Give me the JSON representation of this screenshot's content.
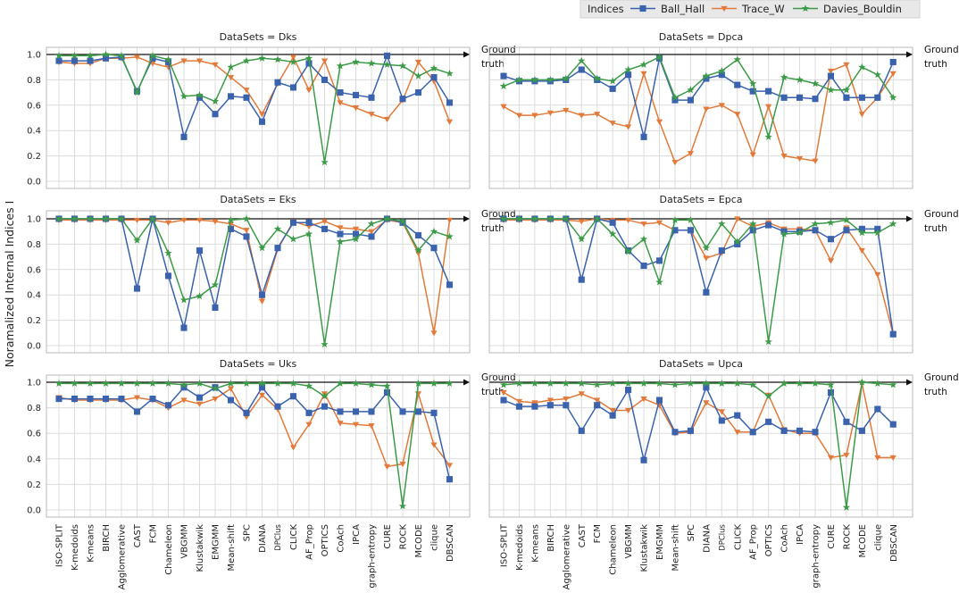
{
  "chart_data": {
    "type": "line",
    "ylabel": "Noramalized Internal Indices I",
    "ylim": [
      0,
      1
    ],
    "yticks": [
      "0.0",
      "0.2",
      "0.4",
      "0.6",
      "0.8",
      "1.0"
    ],
    "categories": [
      "ISO-SPLIT",
      "K-medoids",
      "K-means",
      "BIRCH",
      "Agglomerative",
      "CAST",
      "FCM",
      "Chameleon",
      "VBGMM",
      "Klustakwik",
      "EMGMM",
      "Mean-shift",
      "SPC",
      "DIANA",
      "DPClus",
      "CLICK",
      "AF_Prop",
      "OPTICS",
      "CoAch",
      "IPCA",
      "graph-entropy",
      "CURE",
      "ROCK",
      "MCODE",
      "clique",
      "DBSCAN"
    ],
    "legend": {
      "title": "Indices",
      "entries": [
        "Ball_Hall",
        "Trace_W",
        "Davies_Bouldin"
      ],
      "colors": [
        "#3a62ad",
        "#e17a3a",
        "#3c9a48"
      ],
      "markers": [
        "square",
        "triangle-down",
        "star"
      ]
    },
    "annotation": [
      "Ground",
      "truth"
    ],
    "panels": [
      {
        "title": "DataSets = Dks",
        "series": [
          {
            "name": "Ball_Hall",
            "values": [
              0.95,
              0.95,
              0.95,
              0.97,
              0.98,
              0.71,
              0.97,
              0.94,
              0.35,
              0.66,
              0.53,
              0.67,
              0.66,
              0.47,
              0.78,
              0.74,
              0.93,
              0.8,
              0.7,
              0.68,
              0.66,
              0.99,
              0.65,
              0.7,
              0.82,
              0.62
            ]
          },
          {
            "name": "Trace_W",
            "values": [
              0.94,
              0.93,
              0.93,
              0.97,
              0.97,
              0.98,
              0.93,
              0.9,
              0.95,
              0.95,
              0.92,
              0.82,
              0.72,
              0.53,
              0.77,
              0.98,
              0.72,
              0.95,
              0.62,
              0.58,
              0.53,
              0.49,
              0.64,
              0.94,
              0.79,
              0.47
            ]
          },
          {
            "name": "Davies_Bouldin",
            "values": [
              0.99,
              0.99,
              0.99,
              1.0,
              0.99,
              0.7,
              0.99,
              0.96,
              0.67,
              0.68,
              0.63,
              0.9,
              0.95,
              0.97,
              0.96,
              0.94,
              0.97,
              0.15,
              0.91,
              0.94,
              0.93,
              0.92,
              0.91,
              0.83,
              0.89,
              0.85
            ]
          }
        ]
      },
      {
        "title": "DataSets = Dpca",
        "series": [
          {
            "name": "Ball_Hall",
            "values": [
              0.83,
              0.79,
              0.79,
              0.79,
              0.8,
              0.88,
              0.8,
              0.73,
              0.84,
              0.35,
              0.97,
              0.64,
              0.64,
              0.81,
              0.84,
              0.76,
              0.71,
              0.71,
              0.66,
              0.66,
              0.65,
              0.83,
              0.66,
              0.66,
              0.66,
              0.94
            ]
          },
          {
            "name": "Trace_W",
            "values": [
              0.59,
              0.52,
              0.52,
              0.54,
              0.56,
              0.52,
              0.53,
              0.46,
              0.43,
              0.85,
              0.47,
              0.15,
              0.22,
              0.57,
              0.6,
              0.53,
              0.21,
              0.59,
              0.2,
              0.18,
              0.16,
              0.87,
              0.92,
              0.53,
              0.66,
              0.85
            ]
          },
          {
            "name": "Davies_Bouldin",
            "values": [
              0.75,
              0.8,
              0.8,
              0.8,
              0.81,
              0.95,
              0.81,
              0.79,
              0.88,
              0.92,
              0.98,
              0.66,
              0.72,
              0.83,
              0.87,
              0.96,
              0.77,
              0.35,
              0.82,
              0.8,
              0.77,
              0.72,
              0.72,
              0.9,
              0.84,
              0.66
            ]
          }
        ]
      },
      {
        "title": "DataSets = Eks",
        "series": [
          {
            "name": "Ball_Hall",
            "values": [
              1.0,
              1.0,
              1.0,
              1.0,
              1.0,
              0.45,
              1.0,
              0.55,
              0.14,
              0.75,
              0.3,
              0.92,
              0.86,
              0.4,
              0.77,
              0.97,
              0.97,
              0.92,
              0.88,
              0.88,
              0.86,
              1.0,
              0.97,
              0.87,
              0.77,
              0.48
            ]
          },
          {
            "name": "Trace_W",
            "values": [
              0.99,
              0.99,
              0.99,
              0.99,
              0.99,
              0.99,
              0.99,
              0.97,
              0.99,
              0.99,
              0.98,
              0.96,
              0.91,
              0.35,
              0.76,
              0.98,
              0.94,
              0.98,
              0.93,
              0.92,
              0.9,
              0.99,
              0.97,
              0.73,
              0.1,
              0.99
            ]
          },
          {
            "name": "Davies_Bouldin",
            "values": [
              1.0,
              1.0,
              1.0,
              1.0,
              1.0,
              0.83,
              1.0,
              0.73,
              0.36,
              0.39,
              0.48,
              0.99,
              1.0,
              0.77,
              0.92,
              0.84,
              0.88,
              0.01,
              0.82,
              0.84,
              0.96,
              1.0,
              0.98,
              0.75,
              0.9,
              0.86
            ]
          }
        ]
      },
      {
        "title": "DataSets = Epca",
        "series": [
          {
            "name": "Ball_Hall",
            "values": [
              1.0,
              1.0,
              1.0,
              1.0,
              1.0,
              0.52,
              1.0,
              0.97,
              0.75,
              0.63,
              0.67,
              0.91,
              0.91,
              0.42,
              0.75,
              0.8,
              0.91,
              0.95,
              0.9,
              0.9,
              0.91,
              0.84,
              0.91,
              0.92,
              0.92,
              0.09
            ]
          },
          {
            "name": "Trace_W",
            "values": [
              0.99,
              0.99,
              0.99,
              0.99,
              0.99,
              0.98,
              1.0,
              0.99,
              0.99,
              0.96,
              0.97,
              0.91,
              0.91,
              0.69,
              0.73,
              1.0,
              0.94,
              0.97,
              0.92,
              0.92,
              0.91,
              0.67,
              0.93,
              0.75,
              0.56,
              0.09
            ]
          },
          {
            "name": "Davies_Bouldin",
            "values": [
              1.0,
              1.0,
              1.0,
              1.0,
              1.0,
              0.84,
              1.0,
              0.88,
              0.74,
              0.84,
              0.5,
              0.99,
              0.99,
              0.77,
              0.96,
              0.82,
              0.96,
              0.03,
              0.88,
              0.89,
              0.96,
              0.97,
              0.99,
              0.89,
              0.89,
              0.96
            ]
          }
        ]
      },
      {
        "title": "DataSets = Uks",
        "series": [
          {
            "name": "Ball_Hall",
            "values": [
              0.87,
              0.87,
              0.87,
              0.87,
              0.87,
              0.77,
              0.87,
              0.82,
              0.96,
              0.88,
              0.96,
              0.86,
              0.76,
              0.96,
              0.81,
              0.89,
              0.76,
              0.81,
              0.77,
              0.77,
              0.77,
              0.92,
              0.77,
              0.77,
              0.76,
              0.24
            ]
          },
          {
            "name": "Trace_W",
            "values": [
              0.88,
              0.86,
              0.86,
              0.86,
              0.86,
              0.88,
              0.86,
              0.8,
              0.86,
              0.83,
              0.87,
              0.95,
              0.73,
              0.9,
              0.79,
              0.49,
              0.67,
              0.91,
              0.68,
              0.67,
              0.66,
              0.34,
              0.36,
              0.91,
              0.51,
              0.35
            ]
          },
          {
            "name": "Davies_Bouldin",
            "values": [
              0.99,
              0.99,
              0.99,
              0.99,
              0.99,
              0.99,
              0.99,
              0.99,
              0.98,
              0.99,
              0.95,
              0.99,
              0.99,
              0.99,
              0.99,
              0.99,
              0.97,
              0.89,
              0.99,
              0.99,
              0.98,
              0.97,
              0.03,
              0.99,
              0.99,
              0.99
            ]
          }
        ]
      },
      {
        "title": "DataSets = Upca",
        "series": [
          {
            "name": "Ball_Hall",
            "values": [
              0.86,
              0.81,
              0.81,
              0.82,
              0.82,
              0.62,
              0.82,
              0.74,
              0.94,
              0.39,
              0.86,
              0.61,
              0.62,
              0.96,
              0.7,
              0.74,
              0.61,
              0.69,
              0.62,
              0.62,
              0.61,
              0.92,
              0.69,
              0.62,
              0.79,
              0.67
            ]
          },
          {
            "name": "Trace_W",
            "values": [
              0.92,
              0.85,
              0.84,
              0.86,
              0.87,
              0.91,
              0.86,
              0.78,
              0.78,
              0.87,
              0.82,
              0.6,
              0.61,
              0.84,
              0.77,
              0.61,
              0.61,
              0.9,
              0.63,
              0.6,
              0.6,
              0.41,
              0.43,
              0.99,
              0.41,
              0.41
            ]
          },
          {
            "name": "Davies_Bouldin",
            "values": [
              0.98,
              0.99,
              0.99,
              0.99,
              0.99,
              0.99,
              0.98,
              0.99,
              0.99,
              0.99,
              0.99,
              0.98,
              0.99,
              0.99,
              0.99,
              0.99,
              0.98,
              0.89,
              0.99,
              0.99,
              0.99,
              0.98,
              0.02,
              1.0,
              0.99,
              0.98
            ]
          }
        ]
      }
    ]
  }
}
